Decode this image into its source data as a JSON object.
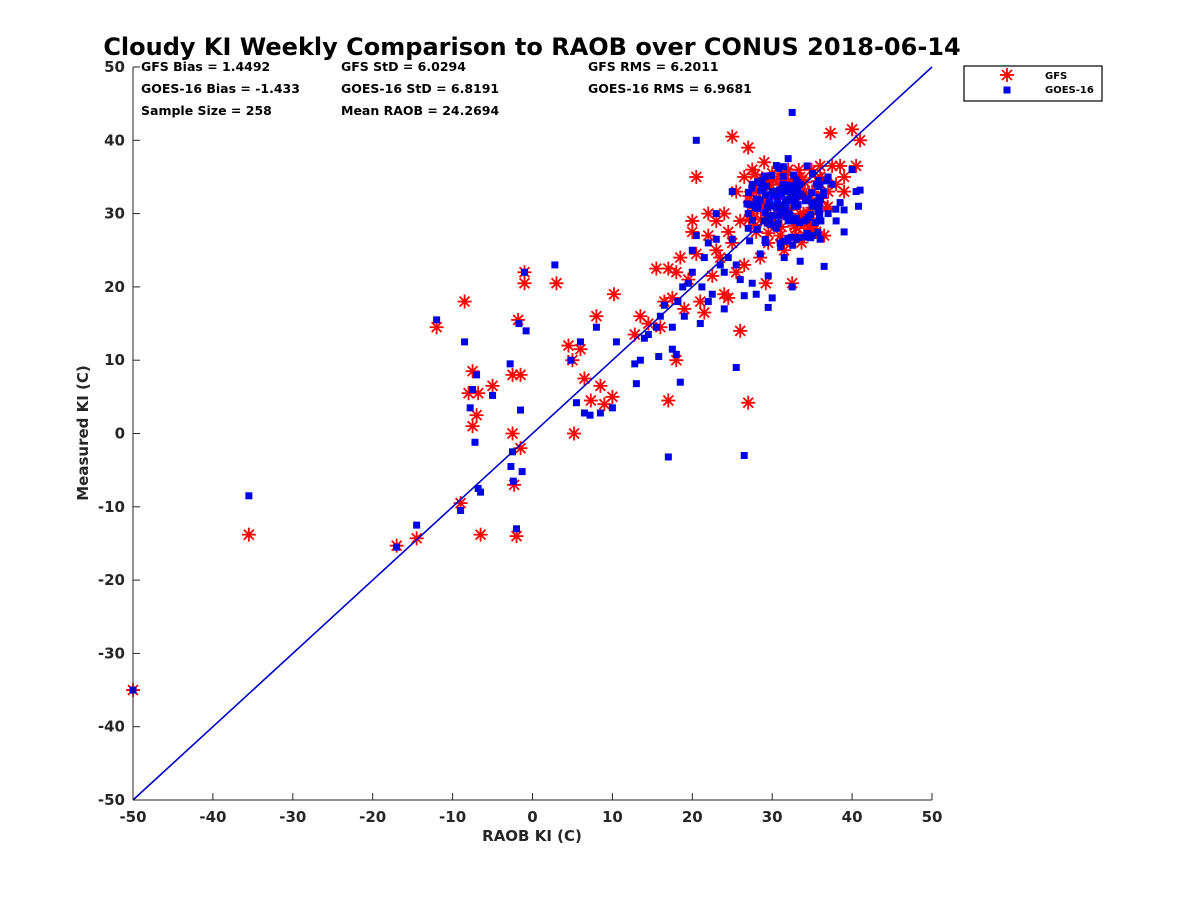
{
  "chart_data": {
    "type": "scatter",
    "title": "Cloudy KI Weekly Comparison to RAOB over CONUS 2018-06-14",
    "xlabel": "RAOB KI (C)",
    "ylabel": "Measured KI (C)",
    "xlim": [
      -50,
      50
    ],
    "ylim": [
      -50,
      50
    ],
    "xticks": [
      "-50",
      "-40",
      "-30",
      "-20",
      "-10",
      "0",
      "10",
      "20",
      "30",
      "40",
      "50"
    ],
    "yticks": [
      "50",
      "40",
      "30",
      "20",
      "10",
      "0",
      "-10",
      "-20",
      "-30",
      "-40",
      "-50"
    ],
    "grid": false,
    "legend_position": "outside-top-right",
    "reference_line": {
      "type": "identity",
      "color": "#0000cc"
    },
    "stats": [
      "GFS Bias = 1.4492",
      "GFS StD = 6.0294",
      "GFS RMS = 6.2011",
      "GOES-16 Bias = -1.433",
      "GOES-16 StD = 6.8191",
      "GOES-16 RMS = 6.9681",
      "Sample Size = 258",
      "Mean RAOB = 24.2694"
    ],
    "series": [
      {
        "name": "GFS",
        "marker": "asterisk",
        "color": "#ff0000",
        "points": [
          [
            -50,
            -35
          ],
          [
            -35.5,
            -13.8
          ],
          [
            -17,
            -15.3
          ],
          [
            -14.5,
            -14.3
          ],
          [
            -12,
            14.5
          ],
          [
            -9,
            -9.5
          ],
          [
            -8.5,
            18
          ],
          [
            -8,
            5.5
          ],
          [
            -7.5,
            8.5
          ],
          [
            -7.5,
            1
          ],
          [
            -7,
            2.5
          ],
          [
            -6.8,
            5.5
          ],
          [
            -6.5,
            -13.8
          ],
          [
            -5,
            6.5
          ],
          [
            -2.5,
            8
          ],
          [
            -2.5,
            0
          ],
          [
            -2.3,
            -7
          ],
          [
            -2,
            -14
          ],
          [
            -1.8,
            15.5
          ],
          [
            -1.5,
            8
          ],
          [
            -1.5,
            -2
          ],
          [
            -1,
            22
          ],
          [
            -1,
            20.5
          ],
          [
            3,
            20.5
          ],
          [
            4.5,
            12
          ],
          [
            5,
            10
          ],
          [
            5.2,
            0
          ],
          [
            6,
            11.5
          ],
          [
            6.5,
            7.5
          ],
          [
            7.3,
            4.5
          ],
          [
            8,
            16
          ],
          [
            8.5,
            6.5
          ],
          [
            9,
            4
          ],
          [
            10,
            5
          ],
          [
            10.2,
            19
          ],
          [
            12.8,
            13.5
          ],
          [
            13.5,
            16
          ],
          [
            14.5,
            15
          ],
          [
            15.5,
            22.5
          ],
          [
            16,
            14.5
          ],
          [
            16.5,
            18
          ],
          [
            17,
            22.5
          ],
          [
            17,
            4.5
          ],
          [
            17.5,
            18.5
          ],
          [
            18,
            10
          ],
          [
            18,
            22
          ],
          [
            18.5,
            24
          ],
          [
            19,
            17
          ],
          [
            19.5,
            21
          ],
          [
            20,
            27.5
          ],
          [
            20,
            29
          ],
          [
            20.5,
            35
          ],
          [
            20.5,
            24.5
          ],
          [
            21,
            18
          ],
          [
            21.5,
            16.5
          ],
          [
            22,
            30
          ],
          [
            22,
            27
          ],
          [
            22.5,
            21.5
          ],
          [
            23,
            25
          ],
          [
            23,
            29
          ],
          [
            23.5,
            24
          ],
          [
            24,
            30
          ],
          [
            24,
            19
          ],
          [
            24.5,
            27.5
          ],
          [
            24.5,
            18.5
          ],
          [
            25,
            40.5
          ],
          [
            25,
            26
          ],
          [
            25.5,
            33
          ],
          [
            25.5,
            22
          ],
          [
            26,
            14
          ],
          [
            26,
            29
          ],
          [
            26.5,
            23
          ],
          [
            26.5,
            35
          ],
          [
            27,
            39
          ],
          [
            27,
            4.2
          ],
          [
            27.5,
            30
          ],
          [
            27.5,
            36
          ],
          [
            28,
            27.5
          ],
          [
            28,
            33
          ],
          [
            28.5,
            24
          ],
          [
            29,
            37
          ],
          [
            29,
            31
          ],
          [
            29.2,
            20.5
          ],
          [
            29.5,
            26
          ],
          [
            30,
            35.5
          ],
          [
            30,
            29
          ],
          [
            30.5,
            32
          ],
          [
            31,
            34
          ],
          [
            31,
            27
          ],
          [
            31.5,
            25
          ],
          [
            32,
            36
          ],
          [
            32,
            30.5
          ],
          [
            32.5,
            33
          ],
          [
            32.5,
            20.5
          ],
          [
            33,
            28
          ],
          [
            33.5,
            35
          ],
          [
            34,
            32.5
          ],
          [
            34.5,
            30
          ],
          [
            35,
            33
          ],
          [
            35.5,
            27.5
          ],
          [
            36,
            35
          ],
          [
            36,
            36.5
          ],
          [
            36.5,
            27
          ],
          [
            37,
            33
          ],
          [
            37.3,
            41
          ],
          [
            37.5,
            36.5
          ],
          [
            38,
            34
          ],
          [
            38.5,
            36.5
          ],
          [
            39,
            33
          ],
          [
            39,
            35
          ],
          [
            40,
            41.5
          ],
          [
            40.5,
            36.5
          ],
          [
            41,
            40
          ]
        ]
      },
      {
        "name": "GOES-16",
        "marker": "square",
        "color": "#0000e6",
        "points": [
          [
            -50,
            -35
          ],
          [
            -35.5,
            -8.5
          ],
          [
            -17,
            -15.5
          ],
          [
            -14.5,
            -12.5
          ],
          [
            -12,
            15.5
          ],
          [
            -9,
            -10.5
          ],
          [
            -8.5,
            12.5
          ],
          [
            -7.8,
            3.5
          ],
          [
            -7.5,
            6
          ],
          [
            -7.2,
            -1.2
          ],
          [
            -7,
            8
          ],
          [
            -6.8,
            -7.5
          ],
          [
            -6.5,
            -8
          ],
          [
            -5,
            5.2
          ],
          [
            -2.8,
            9.5
          ],
          [
            -2.7,
            -4.5
          ],
          [
            -2.5,
            -2.5
          ],
          [
            -2.4,
            -6.5
          ],
          [
            -2,
            -13
          ],
          [
            -1.7,
            15
          ],
          [
            -1.5,
            3.2
          ],
          [
            -1.3,
            -5.2
          ],
          [
            -1,
            22
          ],
          [
            -0.8,
            14
          ],
          [
            2.8,
            23
          ],
          [
            4.8,
            10
          ],
          [
            5.5,
            4.2
          ],
          [
            6,
            12.5
          ],
          [
            6.5,
            2.8
          ],
          [
            7.2,
            2.5
          ],
          [
            8,
            14.5
          ],
          [
            8.5,
            2.8
          ],
          [
            10,
            3.5
          ],
          [
            10.5,
            12.5
          ],
          [
            12.8,
            9.5
          ],
          [
            13,
            6.8
          ],
          [
            13.5,
            10
          ],
          [
            14,
            13
          ],
          [
            14.5,
            13.5
          ],
          [
            15.5,
            14.5
          ],
          [
            15.8,
            10.5
          ],
          [
            16,
            16
          ],
          [
            16.5,
            17.5
          ],
          [
            17,
            -3.2
          ],
          [
            17.5,
            14.5
          ],
          [
            17.5,
            11.5
          ],
          [
            18,
            10.8
          ],
          [
            18.2,
            18
          ],
          [
            18.5,
            7
          ],
          [
            18.8,
            20
          ],
          [
            19,
            16
          ],
          [
            19.5,
            20.5
          ],
          [
            20,
            22
          ],
          [
            20,
            25
          ],
          [
            20.5,
            40
          ],
          [
            20.5,
            27
          ],
          [
            21,
            15
          ],
          [
            21.2,
            20
          ],
          [
            21.5,
            24
          ],
          [
            22,
            18
          ],
          [
            22,
            26
          ],
          [
            22.5,
            19
          ],
          [
            23,
            26.5
          ],
          [
            23,
            30
          ],
          [
            23.5,
            23
          ],
          [
            24,
            22
          ],
          [
            24,
            17
          ],
          [
            24.5,
            24
          ],
          [
            25,
            26.5
          ],
          [
            25,
            33
          ],
          [
            25.5,
            9
          ],
          [
            25.5,
            23
          ],
          [
            26,
            21
          ],
          [
            26.5,
            18.8
          ],
          [
            26.5,
            -3
          ],
          [
            27,
            30
          ],
          [
            27,
            28
          ],
          [
            27.5,
            34
          ],
          [
            27.5,
            20.5
          ],
          [
            28,
            32
          ],
          [
            28,
            19
          ],
          [
            28.5,
            24.5
          ],
          [
            29,
            29
          ],
          [
            29,
            35
          ],
          [
            29.5,
            21.5
          ],
          [
            29.5,
            17.2
          ],
          [
            30,
            33
          ],
          [
            30,
            18.5
          ],
          [
            30.5,
            28
          ],
          [
            31,
            30
          ],
          [
            31,
            26
          ],
          [
            31.5,
            33
          ],
          [
            31.5,
            24
          ],
          [
            32,
            37.5
          ],
          [
            32,
            29
          ],
          [
            32.5,
            43.8
          ],
          [
            32.5,
            20
          ],
          [
            33,
            31
          ],
          [
            33,
            26.5
          ],
          [
            33.5,
            34
          ],
          [
            33.5,
            23.5
          ],
          [
            34,
            29
          ],
          [
            34.5,
            32
          ],
          [
            35,
            27
          ],
          [
            35,
            31
          ],
          [
            35.5,
            34
          ],
          [
            36,
            29
          ],
          [
            36,
            26.5
          ],
          [
            36.5,
            22.8
          ],
          [
            37,
            35
          ],
          [
            37,
            30
          ],
          [
            37.5,
            34
          ],
          [
            38,
            29
          ],
          [
            38.5,
            31.5
          ],
          [
            39,
            30.5
          ],
          [
            39,
            27.5
          ],
          [
            40,
            36
          ],
          [
            40.5,
            33
          ],
          [
            40.8,
            31
          ],
          [
            41,
            33.2
          ]
        ]
      }
    ],
    "dense_cluster": {
      "x_range": [
        27,
        37
      ],
      "y_range": [
        26,
        36
      ],
      "gfs_count": 60,
      "goes_count": 130
    }
  }
}
